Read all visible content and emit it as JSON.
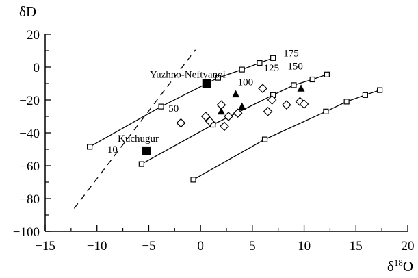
{
  "chart_data": {
    "type": "scatter",
    "xlabel": "δ18O",
    "xlabel_main": "δ",
    "xlabel_sup": "18",
    "xlabel_tail": "O",
    "ylabel": "δD",
    "xlim": [
      -15,
      20
    ],
    "ylim": [
      -100,
      20
    ],
    "xticks": [
      -15,
      -10,
      -5,
      0,
      5,
      10,
      15,
      20
    ],
    "yticks": [
      20,
      0,
      -20,
      -40,
      -60,
      -80,
      -100
    ],
    "grid": false,
    "series": [
      {
        "marker": "open-square",
        "line": "solid",
        "points": [
          [
            -10.7,
            -48.5
          ],
          [
            -3.8,
            -24
          ],
          [
            1.7,
            -6.5
          ],
          [
            4.0,
            -1.5
          ],
          [
            5.7,
            2.5
          ],
          [
            7.0,
            5.5
          ]
        ]
      },
      {
        "marker": "open-square",
        "line": "solid",
        "points": [
          [
            -5.7,
            -59
          ],
          [
            1.2,
            -35
          ],
          [
            7.0,
            -17
          ],
          [
            9.0,
            -11
          ],
          [
            10.8,
            -7.5
          ],
          [
            12.2,
            -4.5
          ]
        ]
      },
      {
        "marker": "open-square",
        "line": "solid",
        "points": [
          [
            -0.7,
            -68.5
          ],
          [
            6.2,
            -44
          ],
          [
            12.1,
            -27
          ],
          [
            14.1,
            -21
          ],
          [
            15.9,
            -17
          ],
          [
            17.3,
            -14
          ]
        ]
      },
      {
        "marker": "open-diamond",
        "line": "none",
        "points": [
          [
            -1.9,
            -34
          ],
          [
            0.5,
            -30
          ],
          [
            0.9,
            -33
          ],
          [
            2.0,
            -23
          ],
          [
            2.3,
            -36
          ],
          [
            2.7,
            -30
          ],
          [
            3.6,
            -28
          ],
          [
            6.0,
            -13
          ],
          [
            6.5,
            -27
          ],
          [
            6.9,
            -20
          ],
          [
            8.3,
            -23
          ],
          [
            9.6,
            -21
          ],
          [
            10.0,
            -22.5
          ]
        ]
      },
      {
        "marker": "filled-triangle",
        "line": "none",
        "points": [
          [
            2.0,
            -27
          ],
          [
            3.4,
            -16.5
          ],
          [
            4.0,
            -24
          ],
          [
            9.7,
            -13
          ]
        ]
      },
      {
        "marker": "filled-square",
        "line": "none",
        "points": [
          [
            -5.2,
            -51
          ],
          [
            0.6,
            -10
          ]
        ]
      },
      {
        "marker": "none",
        "line": "dashed",
        "points": [
          [
            -12.2,
            -86
          ],
          [
            -0.5,
            10.5
          ]
        ]
      }
    ],
    "annotations": [
      {
        "text": "Yuzhno-Neftyanoi",
        "x": -4.9,
        "y": -6.5
      },
      {
        "text": "Kuchugur",
        "x": -8.0,
        "y": -45.5
      },
      {
        "text": "10",
        "x": -9.0,
        "y": -52
      },
      {
        "text": "50",
        "x": -3.1,
        "y": -27
      },
      {
        "text": "100",
        "x": 3.6,
        "y": -11
      },
      {
        "text": "125",
        "x": 6.1,
        "y": -2.5
      },
      {
        "text": "150",
        "x": 8.4,
        "y": -1.5
      },
      {
        "text": "175",
        "x": 8.0,
        "y": 6.5
      }
    ]
  }
}
